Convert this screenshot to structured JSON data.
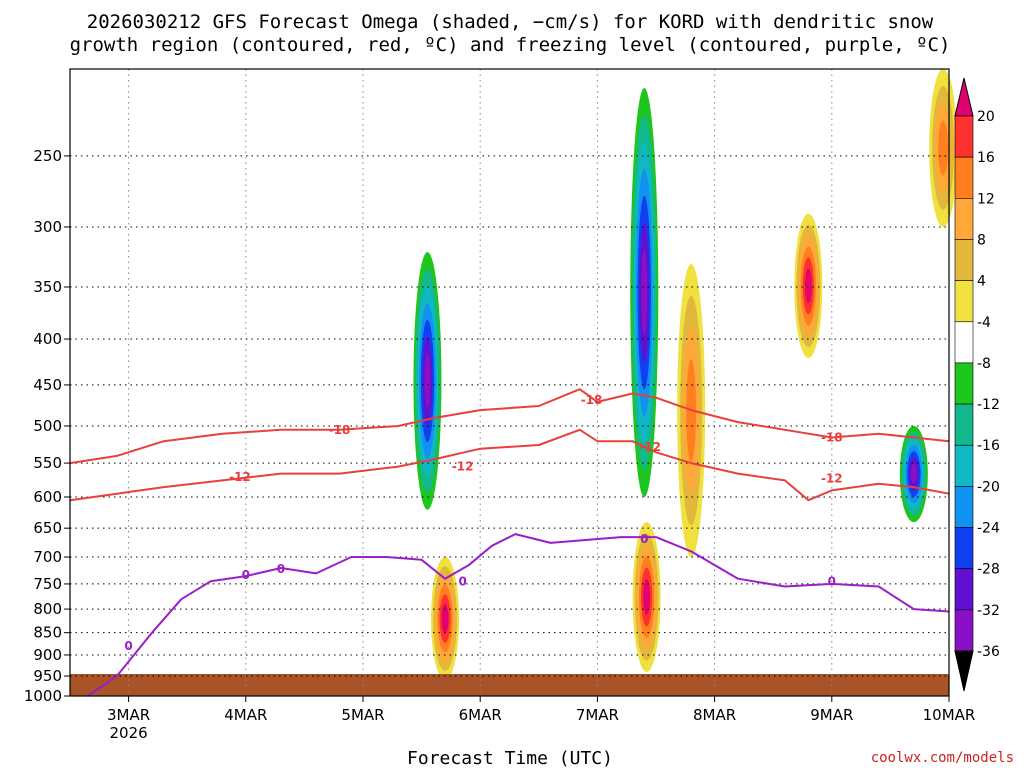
{
  "title_line1": "2026030212 GFS Forecast Omega (shaded, −cm/s) for KORD with dendritic snow",
  "title_line2": "growth region (contoured, red, ºC) and freezing level (contoured, purple, ºC)",
  "xlabel": "Forecast Time (UTC)",
  "credit": "coolwx.com/models",
  "chart_data": {
    "type": "heatmap",
    "title": "2026030212 GFS Forecast Omega (shaded, −cm/s) for KORD with dendritic snow growth region (contoured, red, ºC) and freezing level (contoured, purple, ºC)",
    "xlabel": "Forecast Time (UTC)",
    "ylabel": "",
    "x_tick_labels": [
      "3MAR",
      "4MAR",
      "5MAR",
      "6MAR",
      "7MAR",
      "8MAR",
      "9MAR",
      "10MAR"
    ],
    "x_year_label": "2026",
    "x_range_days": [
      2.5,
      10.0
    ],
    "y_tick_labels": [
      "250",
      "300",
      "350",
      "400",
      "450",
      "500",
      "550",
      "600",
      "650",
      "700",
      "750",
      "800",
      "850",
      "900",
      "950",
      "1000"
    ],
    "y_ticks": [
      250,
      300,
      350,
      400,
      450,
      500,
      550,
      600,
      650,
      700,
      750,
      800,
      850,
      900,
      950,
      1000
    ],
    "y_range_hPa": [
      200,
      1000
    ],
    "y_scale": "log",
    "grid": true,
    "colorbar": {
      "labels": [
        "20",
        "16",
        "12",
        "8",
        "4",
        "-4",
        "-8",
        "-12",
        "-16",
        "-20",
        "-24",
        "-28",
        "-32",
        "-36"
      ],
      "bounds": [
        20,
        16,
        12,
        8,
        4,
        -4,
        -8,
        -12,
        -16,
        -20,
        -24,
        -28,
        -32,
        -36
      ],
      "colors": [
        "#e3006f",
        "#ff3030",
        "#ff7f1e",
        "#ffa838",
        "#e2b83c",
        "#f0e040",
        "#ffffff",
        "#1dc61d",
        "#13b98c",
        "#10b8c4",
        "#1093f0",
        "#1040f0",
        "#6010d0",
        "#8a10c8",
        "#a8a8a8",
        "#000000"
      ]
    },
    "omega_features": [
      {
        "x_day": 5.55,
        "p_top": 320,
        "p_bot": 620,
        "peak": -36
      },
      {
        "x_day": 5.7,
        "p_top": 700,
        "p_bot": 960,
        "peak": 20
      },
      {
        "x_day": 7.4,
        "p_top": 210,
        "p_bot": 600,
        "peak": -36
      },
      {
        "x_day": 7.42,
        "p_top": 640,
        "p_bot": 940,
        "peak": 20
      },
      {
        "x_day": 7.8,
        "p_top": 330,
        "p_bot": 700,
        "peak": 12
      },
      {
        "x_day": 8.8,
        "p_top": 290,
        "p_bot": 420,
        "peak": 20
      },
      {
        "x_day": 9.7,
        "p_top": 500,
        "p_bot": 640,
        "peak": -36
      },
      {
        "x_day": 9.95,
        "p_top": 200,
        "p_bot": 300,
        "peak": 12
      }
    ],
    "series": [
      {
        "name": "-18",
        "x": [
          2.5,
          2.9,
          3.3,
          3.8,
          4.3,
          4.8,
          5.3,
          5.6,
          6.0,
          6.5,
          6.85,
          7.0,
          7.3,
          7.5,
          7.8,
          8.2,
          8.6,
          9.0,
          9.4,
          9.7,
          10.0
        ],
        "y": [
          550,
          540,
          520,
          510,
          505,
          505,
          500,
          490,
          480,
          475,
          455,
          470,
          460,
          465,
          480,
          495,
          505,
          515,
          510,
          515,
          520
        ]
      },
      {
        "name": "-12",
        "x": [
          2.5,
          2.9,
          3.3,
          3.8,
          4.3,
          4.8,
          5.3,
          5.6,
          6.0,
          6.5,
          6.85,
          7.0,
          7.3,
          7.5,
          7.8,
          8.2,
          8.6,
          8.8,
          9.0,
          9.4,
          9.7,
          10.0
        ],
        "y": [
          605,
          595,
          585,
          575,
          565,
          565,
          555,
          545,
          530,
          525,
          505,
          520,
          520,
          535,
          550,
          565,
          575,
          605,
          590,
          580,
          585,
          595
        ]
      },
      {
        "name": "0",
        "x": [
          2.65,
          2.9,
          3.2,
          3.45,
          3.7,
          4.0,
          4.3,
          4.6,
          4.9,
          5.2,
          5.5,
          5.7,
          5.9,
          6.1,
          6.3,
          6.6,
          6.9,
          7.2,
          7.5,
          7.8,
          8.2,
          8.6,
          9.0,
          9.4,
          9.7,
          10.0
        ],
        "y": [
          1000,
          950,
          850,
          780,
          745,
          735,
          720,
          730,
          700,
          700,
          705,
          740,
          715,
          680,
          660,
          675,
          670,
          665,
          665,
          690,
          740,
          755,
          750,
          755,
          800,
          805
        ]
      }
    ],
    "contour_labels": [
      {
        "text": "-18",
        "x_day": 4.8,
        "p": 505
      },
      {
        "text": "-18",
        "x_day": 6.95,
        "p": 468
      },
      {
        "text": "-18",
        "x_day": 9.0,
        "p": 515
      },
      {
        "text": "-12",
        "x_day": 3.95,
        "p": 570
      },
      {
        "text": "-12",
        "x_day": 5.85,
        "p": 555
      },
      {
        "text": "-12",
        "x_day": 7.45,
        "p": 528
      },
      {
        "text": "-12",
        "x_day": 9.0,
        "p": 572
      },
      {
        "text": "0",
        "x_day": 4.0,
        "p": 733
      },
      {
        "text": "0",
        "x_day": 4.3,
        "p": 722
      },
      {
        "text": "0",
        "x_day": 3.0,
        "p": 880
      },
      {
        "text": "0",
        "x_day": 5.85,
        "p": 745
      },
      {
        "text": "0",
        "x_day": 7.4,
        "p": 668
      },
      {
        "text": "0",
        "x_day": 9.0,
        "p": 745
      }
    ],
    "terrain_color": "#a85428"
  }
}
